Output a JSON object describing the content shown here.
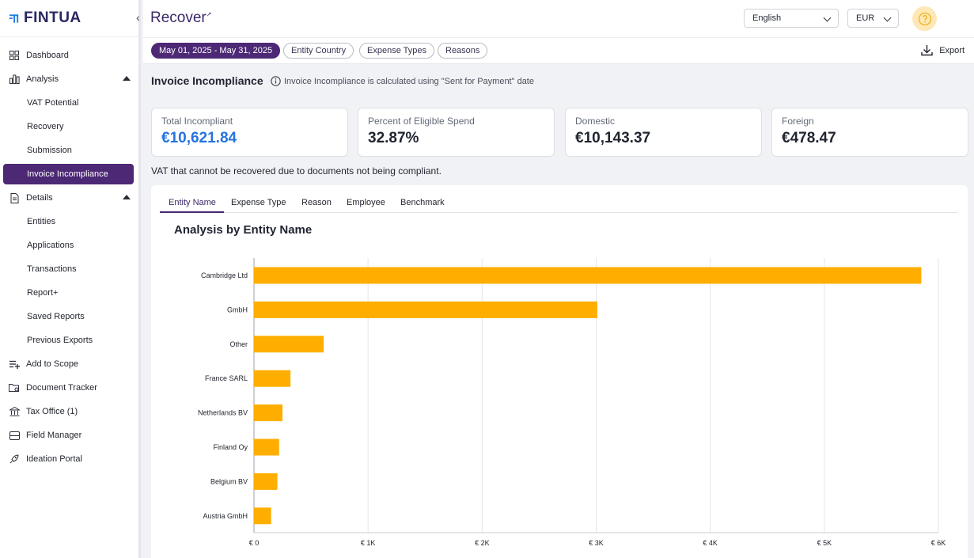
{
  "app": {
    "logo": "FINTUA",
    "product": "Recover"
  },
  "sidebar": {
    "dashboard": "Dashboard",
    "analysis": "Analysis",
    "analysis_items": [
      "VAT Potential",
      "Recovery",
      "Submission",
      "Invoice Incompliance"
    ],
    "details": "Details",
    "details_items": [
      "Entities",
      "Applications",
      "Transactions",
      "Report+",
      "Saved Reports",
      "Previous Exports"
    ],
    "add_to_scope": "Add to Scope",
    "document_tracker": "Document Tracker",
    "tax_office": "Tax Office (1)",
    "field_manager": "Field Manager",
    "ideation_portal": "Ideation Portal"
  },
  "header": {
    "language": "English",
    "currency": "EUR"
  },
  "filters": {
    "date_range": "May 01, 2025 - May 31, 2025",
    "entity_country": "Entity Country",
    "expense_types": "Expense Types",
    "reasons": "Reasons",
    "export": "Export"
  },
  "page": {
    "title": "Invoice Incompliance",
    "info": "Invoice Incompliance is calculated using \"Sent for Payment\" date",
    "description": "VAT that cannot be recovered due to documents not being compliant."
  },
  "cards": [
    {
      "label": "Total Incompliant",
      "value": "€10,621.84"
    },
    {
      "label": "Percent of Eligible Spend",
      "value": "32.87%"
    },
    {
      "label": "Domestic",
      "value": "€10,143.37"
    },
    {
      "label": "Foreign",
      "value": "€478.47"
    }
  ],
  "tabs": [
    "Entity Name",
    "Expense Type",
    "Reason",
    "Employee",
    "Benchmark"
  ],
  "colors": {
    "accent": "#4c2875",
    "bar": "#ffae00",
    "highlight": "#2473e0"
  },
  "chart_data": {
    "type": "bar",
    "orientation": "horizontal",
    "title": "Analysis by Entity Name",
    "categories": [
      "Cambridge Ltd",
      "GmbH",
      "Other",
      "France SARL",
      "Netherlands BV",
      "Finland Oy",
      "Belgium BV",
      "Austria GmbH"
    ],
    "values": [
      5850,
      3010,
      610,
      320,
      250,
      220,
      205,
      150
    ],
    "xlim": [
      0,
      6000
    ],
    "xticks": [
      "€ 0",
      "€ 1K",
      "€ 2K",
      "€ 3K",
      "€ 4K",
      "€ 5K",
      "€ 6K"
    ],
    "xlabel": "",
    "ylabel": "",
    "grid": true
  }
}
